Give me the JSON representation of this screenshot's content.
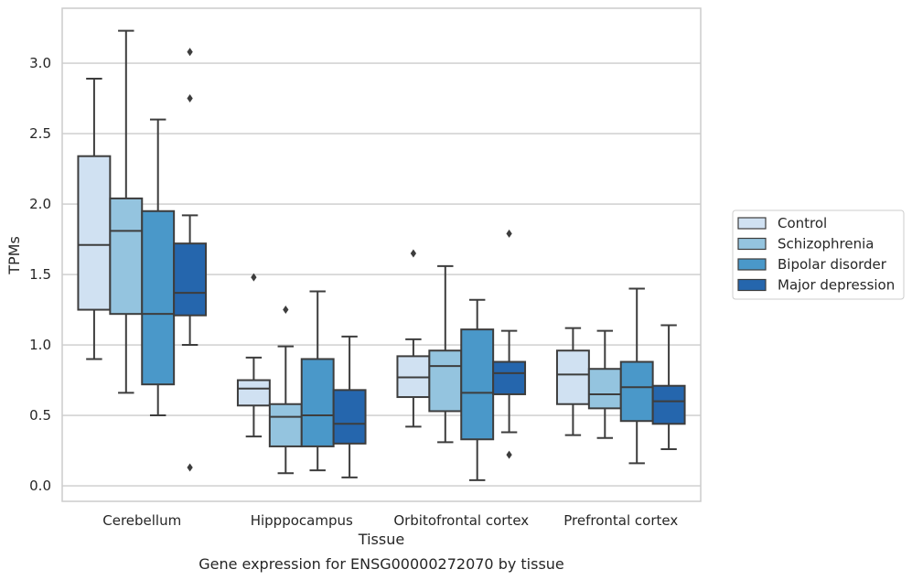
{
  "chart_data": {
    "type": "box",
    "title": "",
    "caption": "Gene expression for ENSG00000272070 by tissue",
    "xlabel": "Tissue",
    "ylabel": "TPMs",
    "ylim": [
      -0.11,
      3.39
    ],
    "yticks": [
      0.0,
      0.5,
      1.0,
      1.5,
      2.0,
      2.5,
      3.0
    ],
    "ytick_labels": [
      "0.0",
      "0.5",
      "1.0",
      "1.5",
      "2.0",
      "2.5",
      "3.0"
    ],
    "grid": "horizontal",
    "legend_position": "right",
    "categories": [
      "Cerebellum",
      "Hipppocampus",
      "Orbitofrontal cortex",
      "Prefrontal cortex"
    ],
    "series": [
      {
        "name": "Control",
        "color": "#d0e1f2",
        "boxes": [
          {
            "whisker_low": 0.9,
            "q1": 1.25,
            "median": 1.71,
            "q3": 2.34,
            "whisker_high": 2.89,
            "outliers": []
          },
          {
            "whisker_low": 0.35,
            "q1": 0.57,
            "median": 0.69,
            "q3": 0.75,
            "whisker_high": 0.91,
            "outliers": [
              1.48
            ]
          },
          {
            "whisker_low": 0.42,
            "q1": 0.63,
            "median": 0.77,
            "q3": 0.92,
            "whisker_high": 1.04,
            "outliers": [
              1.65
            ]
          },
          {
            "whisker_low": 0.36,
            "q1": 0.58,
            "median": 0.79,
            "q3": 0.96,
            "whisker_high": 1.12,
            "outliers": []
          }
        ]
      },
      {
        "name": "Schizophrenia",
        "color": "#94c4df",
        "boxes": [
          {
            "whisker_low": 0.66,
            "q1": 1.22,
            "median": 1.81,
            "q3": 2.04,
            "whisker_high": 3.23,
            "outliers": []
          },
          {
            "whisker_low": 0.09,
            "q1": 0.28,
            "median": 0.49,
            "q3": 0.58,
            "whisker_high": 0.99,
            "outliers": [
              1.25
            ]
          },
          {
            "whisker_low": 0.31,
            "q1": 0.53,
            "median": 0.85,
            "q3": 0.96,
            "whisker_high": 1.56,
            "outliers": []
          },
          {
            "whisker_low": 0.34,
            "q1": 0.55,
            "median": 0.65,
            "q3": 0.83,
            "whisker_high": 1.1,
            "outliers": []
          }
        ]
      },
      {
        "name": "Bipolar disorder",
        "color": "#4a98c9",
        "boxes": [
          {
            "whisker_low": 0.5,
            "q1": 0.72,
            "median": 1.22,
            "q3": 1.95,
            "whisker_high": 2.6,
            "outliers": []
          },
          {
            "whisker_low": 0.11,
            "q1": 0.28,
            "median": 0.5,
            "q3": 0.9,
            "whisker_high": 1.38,
            "outliers": []
          },
          {
            "whisker_low": 0.04,
            "q1": 0.33,
            "median": 0.66,
            "q3": 1.11,
            "whisker_high": 1.32,
            "outliers": []
          },
          {
            "whisker_low": 0.16,
            "q1": 0.46,
            "median": 0.7,
            "q3": 0.88,
            "whisker_high": 1.4,
            "outliers": []
          }
        ]
      },
      {
        "name": "Major depression",
        "color": "#2566ad",
        "boxes": [
          {
            "whisker_low": 1.0,
            "q1": 1.21,
            "median": 1.37,
            "q3": 1.72,
            "whisker_high": 1.92,
            "outliers": [
              3.08,
              2.75,
              0.13
            ]
          },
          {
            "whisker_low": 0.06,
            "q1": 0.3,
            "median": 0.44,
            "q3": 0.68,
            "whisker_high": 1.06,
            "outliers": []
          },
          {
            "whisker_low": 0.38,
            "q1": 0.65,
            "median": 0.8,
            "q3": 0.88,
            "whisker_high": 1.1,
            "outliers": [
              1.79,
              0.22
            ]
          },
          {
            "whisker_low": 0.26,
            "q1": 0.44,
            "median": 0.6,
            "q3": 0.71,
            "whisker_high": 1.14,
            "outliers": []
          }
        ]
      }
    ]
  }
}
